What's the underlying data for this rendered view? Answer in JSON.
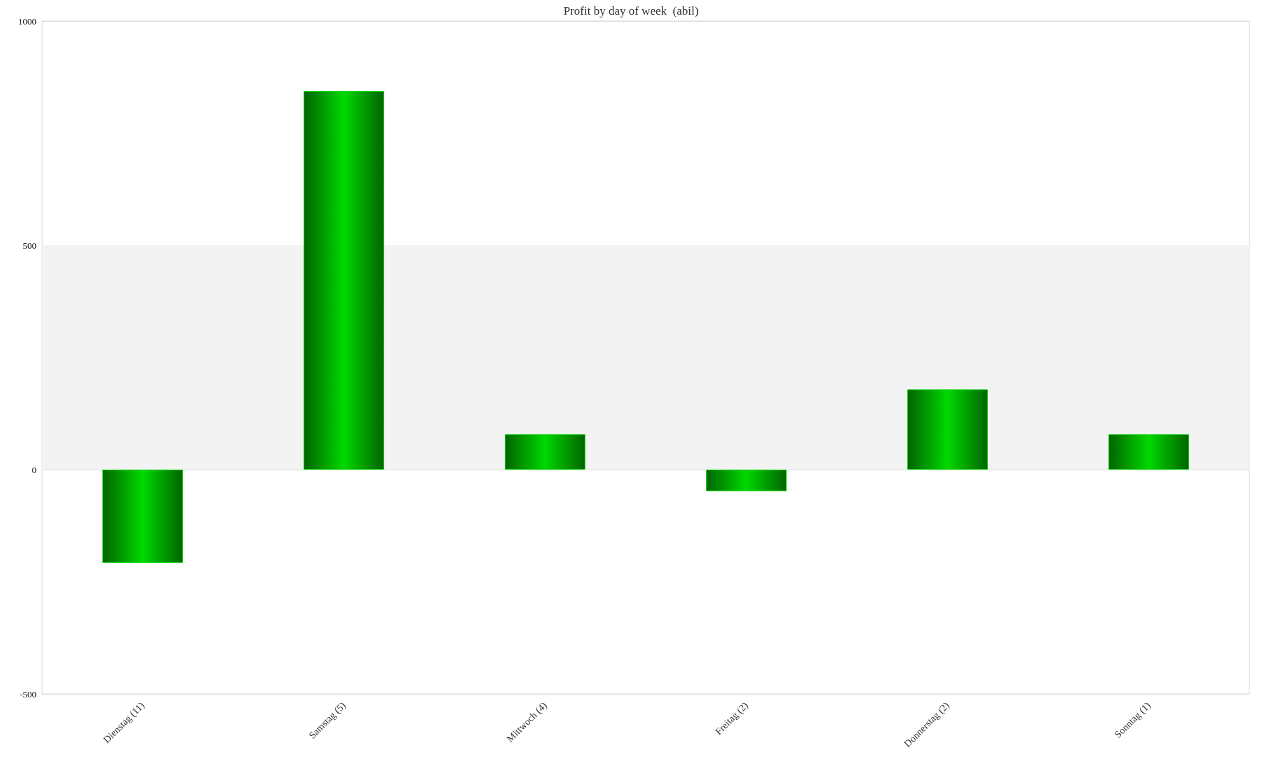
{
  "chart_data": {
    "type": "bar",
    "title": "Profit by day of week  (abil)",
    "categories": [
      "Dienstag (11)",
      "Samstag (5)",
      "Mittwoch (4)",
      "Freitag (2)",
      "Donnerstag (2)",
      "Sonntag (1)"
    ],
    "values": [
      -208,
      844,
      79,
      -48,
      179,
      79
    ],
    "color": "#00d800",
    "ylim": [
      -500,
      1000
    ],
    "yticks": [
      -500,
      0,
      500,
      1000
    ],
    "grid": "y",
    "bands": [
      {
        "axis": "y",
        "from": 0,
        "to": 500,
        "color": "#f3f3f3"
      }
    ]
  }
}
